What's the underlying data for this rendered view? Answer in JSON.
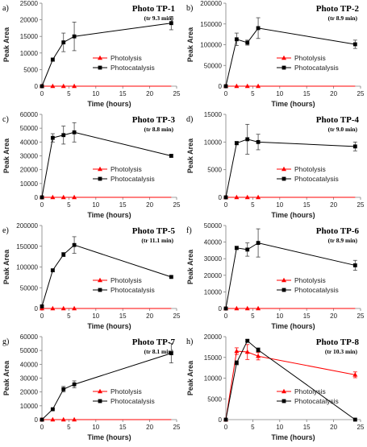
{
  "chart_data": [
    {
      "type": "line",
      "panel": "a)",
      "title": "Photo TP-1",
      "subtitle": "(tr 9.3 min)",
      "xlabel": "Time (hours)",
      "ylabel": "Peak Area",
      "xlim": [
        0,
        25
      ],
      "xticks": [
        0,
        5,
        10,
        15,
        20,
        25
      ],
      "ylim": [
        0,
        25000
      ],
      "yticks": [
        0,
        5000,
        10000,
        15000,
        20000,
        25000
      ],
      "legend": "center-right",
      "series": [
        {
          "name": "Photolysis",
          "color": "#ff0000",
          "marker": "triangle",
          "x": [
            0,
            2,
            4,
            6
          ],
          "y": [
            0,
            0,
            0,
            0
          ],
          "err": [
            0,
            0,
            0,
            0
          ],
          "line_to": 24
        },
        {
          "name": "Photocatalysis",
          "color": "#000000",
          "marker": "square",
          "x": [
            0,
            2,
            4,
            6,
            24
          ],
          "y": [
            0,
            8000,
            13200,
            15000,
            19000
          ],
          "err": [
            0,
            500,
            2800,
            4300,
            2000
          ]
        }
      ]
    },
    {
      "type": "line",
      "panel": "b)",
      "title": "Photo TP-2",
      "subtitle": "(tr 8.9 min)",
      "xlabel": "Time (hours)",
      "ylabel": "Peak Area",
      "xlim": [
        0,
        25
      ],
      "xticks": [
        0,
        5,
        10,
        15,
        20,
        25
      ],
      "ylim": [
        0,
        200000
      ],
      "yticks": [
        0,
        50000,
        100000,
        150000,
        200000
      ],
      "legend": "center-right",
      "series": [
        {
          "name": "Photolysis",
          "color": "#ff0000",
          "marker": "triangle",
          "x": [
            0,
            2,
            4,
            6
          ],
          "y": [
            0,
            0,
            0,
            0
          ],
          "err": [
            0,
            0,
            0,
            0
          ],
          "line_to": 24
        },
        {
          "name": "Photocatalysis",
          "color": "#000000",
          "marker": "square",
          "x": [
            0,
            2,
            4,
            6,
            24
          ],
          "y": [
            0,
            113000,
            105000,
            140000,
            101000
          ],
          "err": [
            0,
            15000,
            6000,
            25000,
            10000
          ]
        }
      ]
    },
    {
      "type": "line",
      "panel": "c)",
      "title": "Photo TP-3",
      "subtitle": "(tr 8.8 min)",
      "xlabel": "Time (hours)",
      "ylabel": "Peak Area",
      "xlim": [
        0,
        25
      ],
      "xticks": [
        0,
        5,
        10,
        15,
        20,
        25
      ],
      "ylim": [
        0,
        60000
      ],
      "yticks": [
        0,
        10000,
        20000,
        30000,
        40000,
        50000,
        60000
      ],
      "legend": "center-right",
      "series": [
        {
          "name": "Photolysis",
          "color": "#ff0000",
          "marker": "triangle",
          "x": [
            0,
            2,
            4,
            6
          ],
          "y": [
            0,
            0,
            0,
            0
          ],
          "err": [
            0,
            0,
            0,
            0
          ],
          "line_to": 24
        },
        {
          "name": "Photocatalysis",
          "color": "#000000",
          "marker": "square",
          "x": [
            0,
            2,
            4,
            6,
            24
          ],
          "y": [
            0,
            43000,
            45000,
            47000,
            30000
          ],
          "err": [
            0,
            3000,
            6500,
            7000,
            1000
          ]
        }
      ]
    },
    {
      "type": "line",
      "panel": "d)",
      "title": "Photo TP-4",
      "subtitle": "(tr 9.0 min)",
      "xlabel": "Time (hours)",
      "ylabel": "Peak Area",
      "xlim": [
        0,
        25
      ],
      "xticks": [
        0,
        5,
        10,
        15,
        20,
        25
      ],
      "ylim": [
        0,
        15000
      ],
      "yticks": [
        0,
        5000,
        10000,
        15000
      ],
      "legend": "center-right",
      "series": [
        {
          "name": "Photolysis",
          "color": "#ff0000",
          "marker": "triangle",
          "x": [
            0,
            2,
            4,
            6
          ],
          "y": [
            0,
            0,
            0,
            0
          ],
          "err": [
            0,
            0,
            0,
            0
          ],
          "line_to": 24
        },
        {
          "name": "Photocatalysis",
          "color": "#000000",
          "marker": "square",
          "x": [
            0,
            2,
            4,
            6,
            24
          ],
          "y": [
            0,
            9800,
            10500,
            10000,
            9200
          ],
          "err": [
            0,
            300,
            2700,
            1400,
            800
          ]
        }
      ]
    },
    {
      "type": "line",
      "panel": "e)",
      "title": "Photo TP-5",
      "subtitle": "(tr 11.1 min)",
      "xlabel": "Time (hours)",
      "ylabel": "Peak Area",
      "xlim": [
        0,
        25
      ],
      "xticks": [
        0,
        5,
        10,
        15,
        20,
        25
      ],
      "ylim": [
        0,
        200000
      ],
      "yticks": [
        0,
        50000,
        100000,
        150000,
        200000
      ],
      "legend": "center-right",
      "series": [
        {
          "name": "Photolysis",
          "color": "#ff0000",
          "marker": "triangle",
          "x": [
            0,
            2,
            4,
            6
          ],
          "y": [
            0,
            0,
            0,
            0
          ],
          "err": [
            0,
            0,
            0,
            0
          ],
          "line_to": 24
        },
        {
          "name": "Photocatalysis",
          "color": "#000000",
          "marker": "square",
          "x": [
            0,
            2,
            4,
            6,
            24
          ],
          "y": [
            5000,
            92000,
            130000,
            153000,
            76000
          ],
          "err": [
            0,
            3000,
            5000,
            20000,
            2000
          ]
        }
      ]
    },
    {
      "type": "line",
      "panel": "f)",
      "title": "Photo TP-6",
      "subtitle": "(tr 8.9 min)",
      "xlabel": "Time (hours)",
      "ylabel": "Peak Area",
      "xlim": [
        0,
        25
      ],
      "xticks": [
        0,
        5,
        10,
        15,
        20,
        25
      ],
      "ylim": [
        0,
        50000
      ],
      "yticks": [
        0,
        10000,
        20000,
        30000,
        40000,
        50000
      ],
      "legend": "center-right",
      "series": [
        {
          "name": "Photolysis",
          "color": "#ff0000",
          "marker": "triangle",
          "x": [
            0,
            2,
            4,
            6
          ],
          "y": [
            0,
            0,
            0,
            0
          ],
          "err": [
            0,
            0,
            0,
            0
          ],
          "line_to": 24
        },
        {
          "name": "Photocatalysis",
          "color": "#000000",
          "marker": "square",
          "x": [
            0,
            2,
            4,
            6,
            24
          ],
          "y": [
            0,
            36500,
            35500,
            39500,
            26000
          ],
          "err": [
            0,
            1000,
            4000,
            8500,
            3000
          ]
        }
      ]
    },
    {
      "type": "line",
      "panel": "g)",
      "title": "Photo TP-7",
      "subtitle": "(tr 8.1 min)",
      "xlabel": "Time (hours)",
      "ylabel": "Peak Area",
      "xlim": [
        0,
        25
      ],
      "xticks": [
        0,
        5,
        10,
        15,
        20,
        25
      ],
      "ylim": [
        0,
        60000
      ],
      "yticks": [
        0,
        10000,
        20000,
        30000,
        40000,
        50000,
        60000
      ],
      "legend": "center-right",
      "series": [
        {
          "name": "Photolysis",
          "color": "#ff0000",
          "marker": "triangle",
          "x": [
            0,
            2,
            4,
            6
          ],
          "y": [
            0,
            0,
            0,
            0
          ],
          "err": [
            0,
            0,
            0,
            0
          ],
          "line_to": 24
        },
        {
          "name": "Photocatalysis",
          "color": "#000000",
          "marker": "square",
          "x": [
            0,
            2,
            4,
            6,
            24
          ],
          "y": [
            0,
            7500,
            22000,
            25500,
            48000
          ],
          "err": [
            0,
            500,
            2000,
            2500,
            7000
          ]
        }
      ]
    },
    {
      "type": "line",
      "panel": "h)",
      "title": "Photo TP-8",
      "subtitle": "(tr 10.3 min)",
      "xlabel": "Time (hours)",
      "ylabel": "Peak Area",
      "xlim": [
        0,
        25
      ],
      "xticks": [
        0,
        5,
        10,
        15,
        20,
        25
      ],
      "ylim": [
        0,
        20000
      ],
      "yticks": [
        0,
        5000,
        10000,
        15000,
        20000
      ],
      "legend": "center-right",
      "series": [
        {
          "name": "Photolysis",
          "color": "#ff0000",
          "marker": "triangle",
          "x": [
            0,
            2,
            4,
            6,
            24
          ],
          "y": [
            0,
            16500,
            16300,
            15300,
            10800
          ],
          "err": [
            0,
            800,
            1800,
            900,
            700
          ]
        },
        {
          "name": "Photocatalysis",
          "color": "#000000",
          "marker": "square",
          "x": [
            0,
            2,
            4,
            6,
            24
          ],
          "y": [
            0,
            13700,
            19000,
            16800,
            0
          ],
          "err": [
            0,
            500,
            300,
            500,
            0
          ]
        }
      ]
    }
  ]
}
